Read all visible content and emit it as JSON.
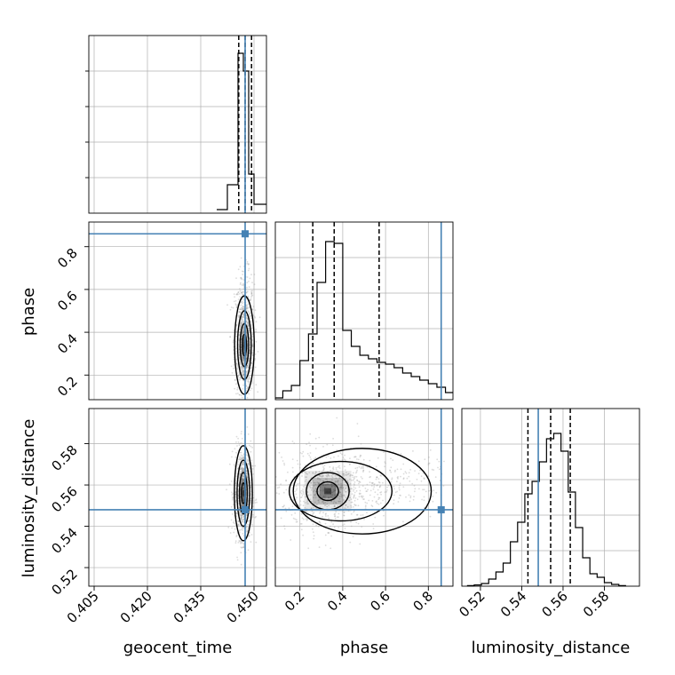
{
  "chart_data": {
    "type": "corner",
    "parameters": [
      "geocent_time",
      "phase",
      "luminosity_distance"
    ],
    "axis_labels": {
      "x": [
        "geocent_time",
        "phase",
        "luminosity_distance"
      ],
      "y": [
        "phase",
        "luminosity_distance"
      ]
    },
    "ranges": {
      "geocent_time": [
        0.4035,
        0.4535
      ],
      "phase": [
        0.085,
        0.915
      ],
      "luminosity_distance": [
        0.511,
        0.597
      ]
    },
    "ticks": {
      "geocent_time": [
        "0.405",
        "0.420",
        "0.435",
        "0.450"
      ],
      "phase": [
        "0.2",
        "0.4",
        "0.6",
        "0.8"
      ],
      "luminosity_distance": [
        "0.52",
        "0.54",
        "0.56",
        "0.58"
      ]
    },
    "tick_values": {
      "geocent_time": [
        0.405,
        0.42,
        0.435,
        0.45
      ],
      "phase": [
        0.2,
        0.4,
        0.6,
        0.8
      ],
      "luminosity_distance": [
        0.52,
        0.54,
        0.56,
        0.58
      ]
    },
    "truths": {
      "geocent_time": 0.4475,
      "phase": 0.86,
      "luminosity_distance": 0.548
    },
    "quantiles": {
      "geocent_time": [
        0.4457,
        0.4475,
        0.4493
      ],
      "phase": [
        0.26,
        0.36,
        0.57
      ],
      "luminosity_distance": [
        0.543,
        0.554,
        0.5635
      ]
    },
    "histograms": {
      "geocent_time": {
        "edges": [
          0.4395,
          0.441,
          0.4425,
          0.444,
          0.4455,
          0.447,
          0.4485,
          0.45,
          0.4515,
          0.4535
        ],
        "counts": [
          0.02,
          0.02,
          0.16,
          0.16,
          0.9,
          0.8,
          0.22,
          0.05,
          0.05
        ]
      },
      "phase": {
        "edges": [
          0.085,
          0.12,
          0.16,
          0.2,
          0.24,
          0.28,
          0.32,
          0.36,
          0.4,
          0.44,
          0.48,
          0.52,
          0.56,
          0.6,
          0.64,
          0.68,
          0.72,
          0.76,
          0.8,
          0.84,
          0.88,
          0.915
        ],
        "counts": [
          0.01,
          0.05,
          0.08,
          0.22,
          0.37,
          0.66,
          0.89,
          0.88,
          0.39,
          0.3,
          0.25,
          0.23,
          0.21,
          0.2,
          0.18,
          0.15,
          0.13,
          0.11,
          0.09,
          0.07,
          0.04
        ]
      },
      "luminosity_distance": {
        "edges": [
          0.5135,
          0.517,
          0.5205,
          0.524,
          0.5275,
          0.531,
          0.5345,
          0.538,
          0.5415,
          0.545,
          0.5485,
          0.552,
          0.5555,
          0.559,
          0.5625,
          0.566,
          0.5695,
          0.573,
          0.5765,
          0.58,
          0.5835,
          0.587,
          0.5905
        ],
        "counts": [
          0.003,
          0.007,
          0.015,
          0.04,
          0.08,
          0.13,
          0.25,
          0.36,
          0.52,
          0.59,
          0.7,
          0.83,
          0.86,
          0.76,
          0.53,
          0.33,
          0.16,
          0.07,
          0.05,
          0.02,
          0.01,
          0.003
        ]
      }
    },
    "pair_density": {
      "phase|geocent_time": {
        "center": [
          0.4473,
          0.34
        ],
        "spread": [
          0.0012,
          0.1
        ],
        "skew": 0.6
      },
      "luminosity_distance|geocent_time": {
        "center": [
          0.447,
          0.556
        ],
        "spread": [
          0.0011,
          0.01
        ]
      },
      "luminosity_distance|phase": {
        "center": [
          0.33,
          0.557
        ],
        "spread": [
          0.1,
          0.009
        ],
        "tail_to": 0.85
      }
    },
    "grid": true,
    "colors": {
      "truth": "#4682b4",
      "hist": "#000000",
      "quantile": "#000000",
      "points": "#9a9a9a",
      "grid": "#b0b0b0"
    }
  }
}
